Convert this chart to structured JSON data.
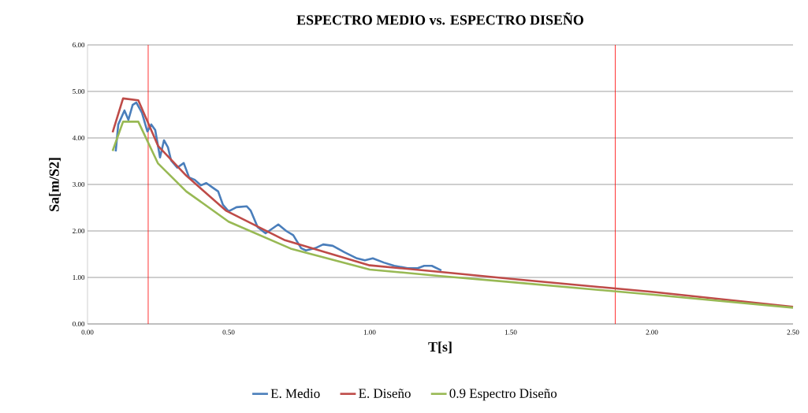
{
  "chart_data": {
    "type": "line",
    "title": "ESPECTRO MEDIO vs. ESPECTRO DISEÑO",
    "xlabel": "T[s]",
    "ylabel": "Sa[m/S2]",
    "xlim": [
      0,
      2.5
    ],
    "ylim": [
      0,
      6
    ],
    "xticks": [
      {
        "value": 0,
        "label": "0.00"
      },
      {
        "value": 0.5,
        "label": "0.50"
      },
      {
        "value": 1,
        "label": "1.00"
      },
      {
        "value": 1.5,
        "label": "1.50"
      },
      {
        "value": 2,
        "label": "2.00"
      },
      {
        "value": 2.5,
        "label": "2.50"
      }
    ],
    "yticks": [
      {
        "value": 0,
        "label": "0.00"
      },
      {
        "value": 1,
        "label": "1.00"
      },
      {
        "value": 2,
        "label": "2.00"
      },
      {
        "value": 3,
        "label": "3.00"
      },
      {
        "value": 4,
        "label": "4.00"
      },
      {
        "value": 5,
        "label": "5.00"
      },
      {
        "value": 6,
        "label": "6.00"
      }
    ],
    "grid": "y",
    "legend": "bottom",
    "ref_lines": [
      {
        "axis": "x",
        "value": 0.215,
        "color": "#ff0000"
      },
      {
        "axis": "x",
        "value": 1.87,
        "color": "#ff0000"
      }
    ],
    "series": [
      {
        "name": "E. Medio",
        "color": "#4a7ebb",
        "x": [
          0.1,
          0.109,
          0.131,
          0.145,
          0.16,
          0.173,
          0.193,
          0.212,
          0.226,
          0.24,
          0.257,
          0.271,
          0.285,
          0.296,
          0.318,
          0.341,
          0.36,
          0.38,
          0.402,
          0.421,
          0.444,
          0.463,
          0.48,
          0.5,
          0.528,
          0.564,
          0.578,
          0.603,
          0.631,
          0.676,
          0.704,
          0.729,
          0.757,
          0.774,
          0.807,
          0.835,
          0.869,
          0.911,
          0.955,
          0.983,
          1.011,
          1.05,
          1.087,
          1.134,
          1.17,
          1.193,
          1.22,
          1.254
        ],
        "values": [
          3.71,
          4.29,
          4.59,
          4.39,
          4.71,
          4.76,
          4.54,
          4.14,
          4.29,
          4.17,
          3.58,
          3.95,
          3.8,
          3.52,
          3.36,
          3.46,
          3.15,
          3.1,
          2.98,
          3.03,
          2.93,
          2.85,
          2.56,
          2.42,
          2.51,
          2.53,
          2.44,
          2.08,
          1.95,
          2.14,
          2.0,
          1.91,
          1.63,
          1.58,
          1.63,
          1.71,
          1.68,
          1.54,
          1.41,
          1.37,
          1.41,
          1.32,
          1.25,
          1.2,
          1.2,
          1.25,
          1.25,
          1.15
        ]
      },
      {
        "name": "E. Diseño",
        "color": "#be4b48",
        "x": [
          0.089,
          0.126,
          0.18,
          0.25,
          0.35,
          0.49,
          0.7,
          1.0,
          1.25,
          1.5,
          2.0,
          2.5
        ],
        "values": [
          4.12,
          4.85,
          4.81,
          3.83,
          3.19,
          2.44,
          1.8,
          1.26,
          1.12,
          0.97,
          0.69,
          0.37
        ]
      },
      {
        "name": "0.9 Espectro Diseño",
        "color": "#98b954",
        "x": [
          0.089,
          0.126,
          0.18,
          0.25,
          0.35,
          0.5,
          0.72,
          1.0,
          1.25,
          1.5,
          2.0,
          2.5
        ],
        "values": [
          3.72,
          4.35,
          4.35,
          3.45,
          2.85,
          2.2,
          1.62,
          1.17,
          1.03,
          0.9,
          0.63,
          0.35
        ]
      }
    ]
  }
}
